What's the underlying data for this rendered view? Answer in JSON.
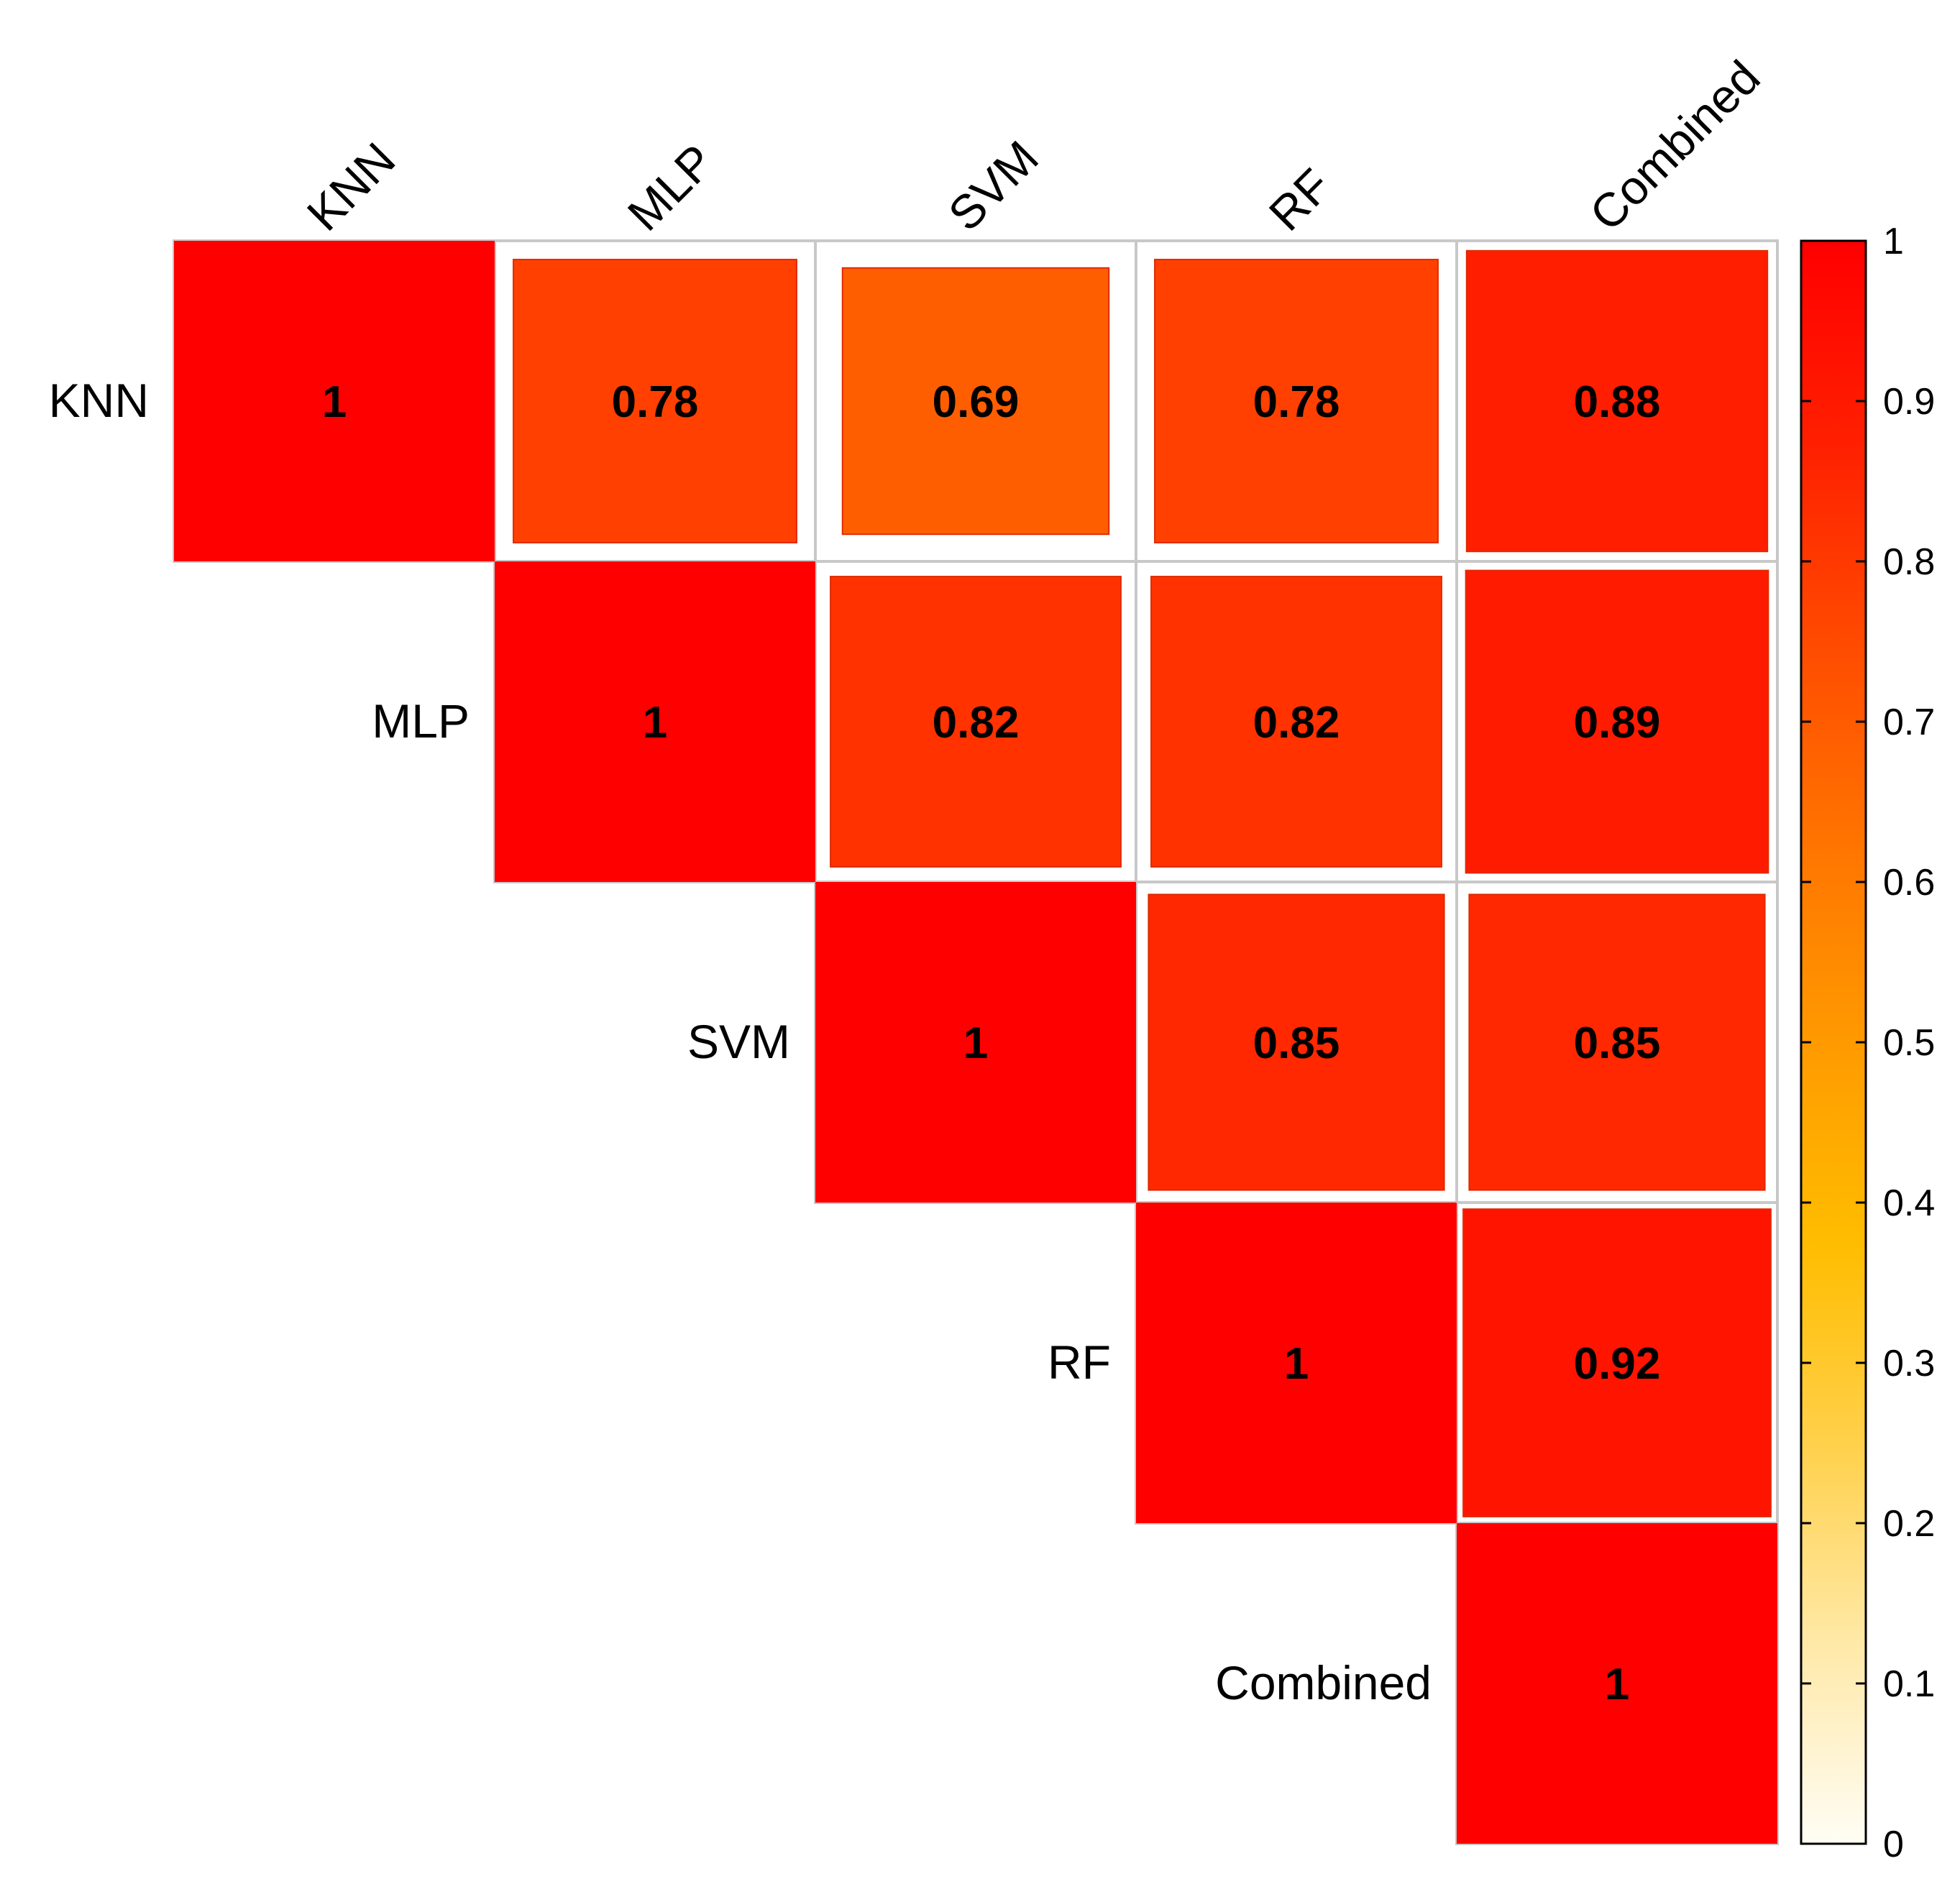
{
  "chart_data": {
    "type": "heatmap",
    "subtype": "correlation-upper-triangle",
    "labels": [
      "KNN",
      "MLP",
      "SVM",
      "RF",
      "Combined"
    ],
    "matrix": [
      [
        1,
        0.78,
        0.69,
        0.78,
        0.88
      ],
      [
        null,
        1,
        0.82,
        0.82,
        0.89
      ],
      [
        null,
        null,
        1,
        0.85,
        0.85
      ],
      [
        null,
        null,
        null,
        1,
        0.92
      ],
      [
        null,
        null,
        null,
        null,
        1
      ]
    ],
    "value_labels": [
      [
        "1",
        "0.78",
        "0.69",
        "0.78",
        "0.88"
      ],
      [
        null,
        "1",
        "0.82",
        "0.82",
        "0.89"
      ],
      [
        null,
        null,
        "1",
        "0.85",
        "0.85"
      ],
      [
        null,
        null,
        null,
        "1",
        "0.92"
      ],
      [
        null,
        null,
        null,
        null,
        "1"
      ]
    ],
    "colorbar": {
      "range": [
        0,
        1
      ],
      "ticks": [
        0,
        0.1,
        0.2,
        0.3,
        0.4,
        0.5,
        0.6,
        0.7,
        0.8,
        0.9,
        1
      ],
      "tick_labels": [
        "0",
        "0.1",
        "0.2",
        "0.3",
        "0.4",
        "0.5",
        "0.6",
        "0.7",
        "0.8",
        "0.9",
        "1"
      ],
      "colors": [
        "#fffdf5",
        "#ffe9a8",
        "#ffd04a",
        "#ffbd00",
        "#ff9a00",
        "#ff7400",
        "#ff4a00",
        "#ff1f00",
        "#ff0000"
      ],
      "position": "right"
    },
    "title": "",
    "xlabel": "",
    "ylabel": ""
  }
}
